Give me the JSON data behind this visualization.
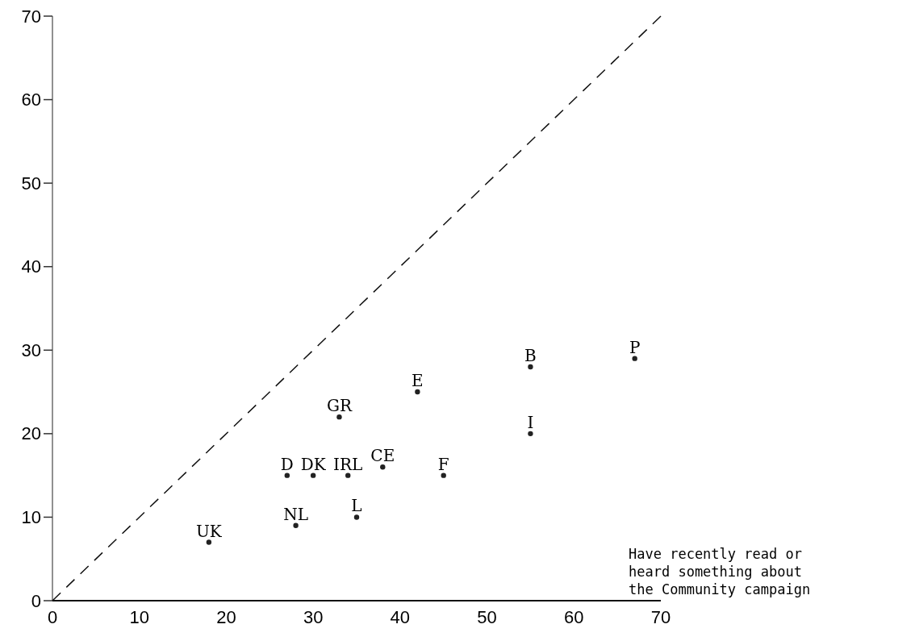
{
  "chart_data": {
    "type": "scatter",
    "xlabel": "Have recently read or heard something about the Community campaign",
    "xlim": [
      0,
      70
    ],
    "ylim": [
      0,
      70
    ],
    "xticks": [
      0,
      10,
      20,
      30,
      40,
      50,
      60,
      70
    ],
    "yticks": [
      0,
      10,
      20,
      30,
      40,
      50,
      60,
      70
    ],
    "marker": "circle",
    "series": [
      {
        "color": "#222222",
        "x": [
          33,
          27,
          30,
          34,
          38,
          45,
          35,
          28,
          18,
          42,
          55,
          67,
          55
        ],
        "values": [
          22,
          15,
          15,
          15,
          16,
          15,
          10,
          9,
          7,
          25,
          28,
          29,
          20
        ]
      },
      {
        "type": "line",
        "color": "#111111",
        "line_style": "dashed",
        "marker": "none",
        "x": [
          0,
          70
        ],
        "values": [
          0,
          70
        ]
      }
    ],
    "annotations": [
      {
        "text": "GR",
        "x": 33,
        "y": 22
      },
      {
        "text": "D",
        "x": 27,
        "y": 15
      },
      {
        "text": "DK",
        "x": 30,
        "y": 15
      },
      {
        "text": "IRL",
        "x": 34,
        "y": 15
      },
      {
        "text": "CE",
        "x": 38,
        "y": 16
      },
      {
        "text": "F",
        "x": 45,
        "y": 15
      },
      {
        "text": "L",
        "x": 35,
        "y": 10
      },
      {
        "text": "NL",
        "x": 28,
        "y": 9
      },
      {
        "text": "UK",
        "x": 18,
        "y": 7
      },
      {
        "text": "E",
        "x": 42,
        "y": 25
      },
      {
        "text": "B",
        "x": 55,
        "y": 28
      },
      {
        "text": "P",
        "x": 67,
        "y": 29
      },
      {
        "text": "I",
        "x": 55,
        "y": 20
      }
    ]
  }
}
